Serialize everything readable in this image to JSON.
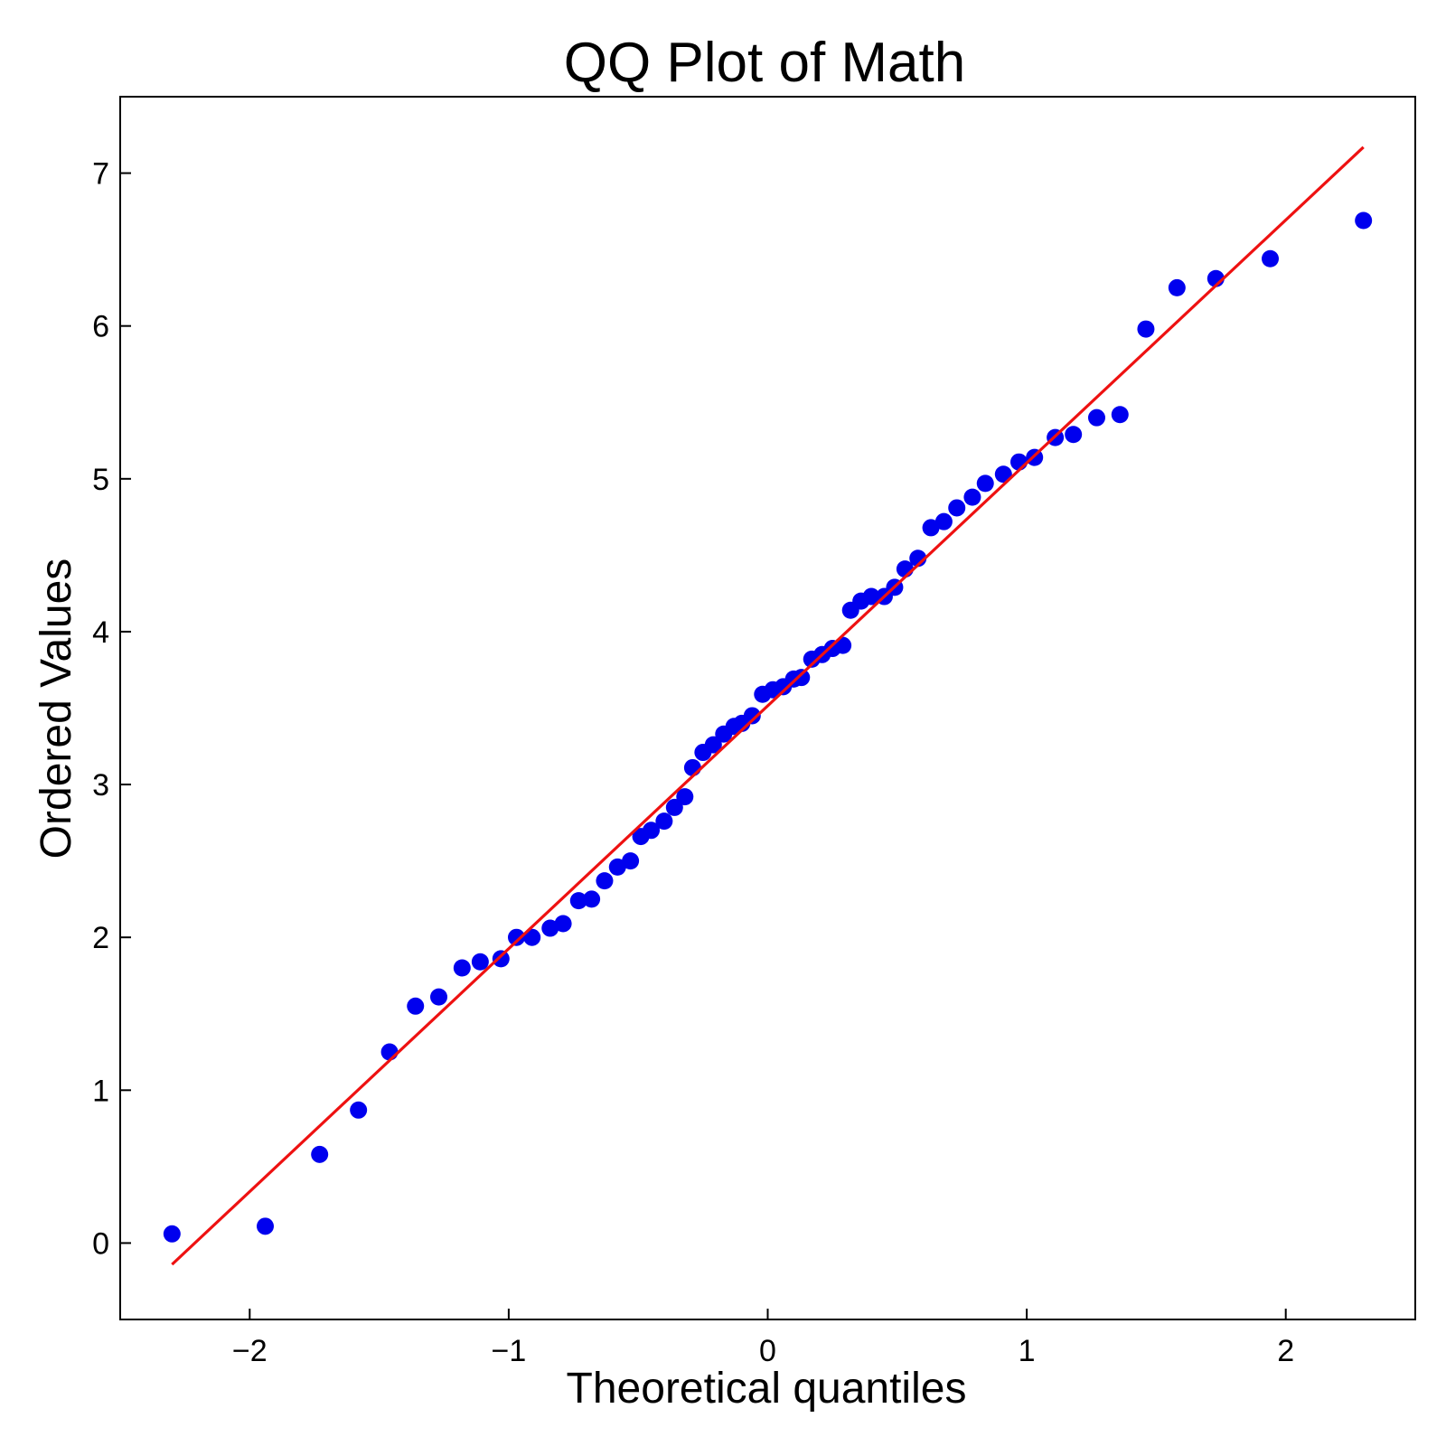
{
  "chart_data": {
    "type": "scatter",
    "title": "QQ Plot of Math",
    "xlabel": "Theoretical quantiles",
    "ylabel": "Ordered Values",
    "xlim": [
      -2.5,
      2.5
    ],
    "ylim": [
      -0.5,
      7.5
    ],
    "xticks": [
      {
        "value": -2,
        "label": "−2"
      },
      {
        "value": -1,
        "label": "−1"
      },
      {
        "value": 0,
        "label": "0"
      },
      {
        "value": 1,
        "label": "1"
      },
      {
        "value": 2,
        "label": "2"
      }
    ],
    "yticks": [
      {
        "value": 0,
        "label": "0"
      },
      {
        "value": 1,
        "label": "1"
      },
      {
        "value": 2,
        "label": "2"
      },
      {
        "value": 3,
        "label": "3"
      },
      {
        "value": 4,
        "label": "4"
      },
      {
        "value": 5,
        "label": "5"
      },
      {
        "value": 6,
        "label": "6"
      },
      {
        "value": 7,
        "label": "7"
      }
    ],
    "grid": false,
    "points_color": "#0000ee",
    "line_color": "#ee1111",
    "points": [
      [
        -2.3,
        0.06
      ],
      [
        -1.94,
        0.11
      ],
      [
        -1.73,
        0.58
      ],
      [
        -1.58,
        0.87
      ],
      [
        -1.46,
        1.25
      ],
      [
        -1.36,
        1.55
      ],
      [
        -1.27,
        1.61
      ],
      [
        -1.18,
        1.8
      ],
      [
        -1.11,
        1.84
      ],
      [
        -1.03,
        1.86
      ],
      [
        -0.97,
        2.0
      ],
      [
        -0.91,
        2.0
      ],
      [
        -0.84,
        2.06
      ],
      [
        -0.79,
        2.09
      ],
      [
        -0.73,
        2.24
      ],
      [
        -0.68,
        2.25
      ],
      [
        -0.63,
        2.37
      ],
      [
        -0.58,
        2.46
      ],
      [
        -0.53,
        2.5
      ],
      [
        -0.49,
        2.66
      ],
      [
        -0.45,
        2.7
      ],
      [
        -0.4,
        2.76
      ],
      [
        -0.36,
        2.85
      ],
      [
        -0.32,
        2.92
      ],
      [
        -0.29,
        3.11
      ],
      [
        -0.25,
        3.21
      ],
      [
        -0.21,
        3.26
      ],
      [
        -0.17,
        3.33
      ],
      [
        -0.13,
        3.38
      ],
      [
        -0.1,
        3.4
      ],
      [
        -0.06,
        3.45
      ],
      [
        -0.02,
        3.59
      ],
      [
        0.02,
        3.62
      ],
      [
        0.06,
        3.64
      ],
      [
        0.1,
        3.69
      ],
      [
        0.13,
        3.7
      ],
      [
        0.17,
        3.82
      ],
      [
        0.21,
        3.85
      ],
      [
        0.25,
        3.89
      ],
      [
        0.29,
        3.91
      ],
      [
        0.32,
        4.14
      ],
      [
        0.36,
        4.2
      ],
      [
        0.4,
        4.23
      ],
      [
        0.45,
        4.23
      ],
      [
        0.49,
        4.29
      ],
      [
        0.53,
        4.41
      ],
      [
        0.58,
        4.48
      ],
      [
        0.63,
        4.68
      ],
      [
        0.68,
        4.72
      ],
      [
        0.73,
        4.81
      ],
      [
        0.79,
        4.88
      ],
      [
        0.84,
        4.97
      ],
      [
        0.91,
        5.03
      ],
      [
        0.97,
        5.11
      ],
      [
        1.03,
        5.14
      ],
      [
        1.11,
        5.27
      ],
      [
        1.18,
        5.29
      ],
      [
        1.27,
        5.4
      ],
      [
        1.36,
        5.42
      ],
      [
        1.46,
        5.98
      ],
      [
        1.58,
        6.25
      ],
      [
        1.73,
        6.31
      ],
      [
        1.94,
        6.44
      ],
      [
        2.3,
        6.69
      ]
    ],
    "fit_line": {
      "x": [
        -2.3,
        2.3
      ],
      "y": [
        -0.14,
        7.17
      ]
    }
  }
}
